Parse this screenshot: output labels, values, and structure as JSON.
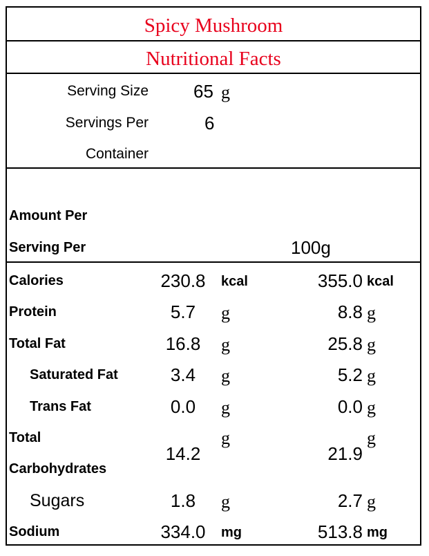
{
  "title": "Spicy Mushroom",
  "subtitle": "Nutritional Facts",
  "serving": {
    "size_label": "Serving Size",
    "size_value": "65",
    "size_unit": "g",
    "servings_label_1": "Servings Per",
    "servings_label_2": "Container",
    "servings_value": "6"
  },
  "amount_header": {
    "label_1": "Amount Per",
    "label_2": "Serving Per",
    "column_2_header": "100g"
  },
  "colors": {
    "title": "#e8001c",
    "text": "#000000",
    "border": "#000000"
  },
  "nutrients": [
    {
      "label": "Calories",
      "per_serving": "230.8",
      "per_serving_unit": "kcal",
      "per_100g": "355.0",
      "per_100g_unit": "kcal"
    },
    {
      "label": "Protein",
      "per_serving": "5.7",
      "per_serving_unit": "g",
      "per_100g": "8.8",
      "per_100g_unit": "g"
    },
    {
      "label": "Total Fat",
      "per_serving": "16.8",
      "per_serving_unit": "g",
      "per_100g": "25.8",
      "per_100g_unit": "g"
    },
    {
      "label": "Saturated Fat",
      "per_serving": "3.4",
      "per_serving_unit": "g",
      "per_100g": "5.2",
      "per_100g_unit": "g"
    },
    {
      "label": "Trans Fat",
      "per_serving": "0.0",
      "per_serving_unit": "g",
      "per_100g": "0.0",
      "per_100g_unit": "g"
    },
    {
      "label_1": "Total",
      "label_2": "Carbohydrates",
      "per_serving": "14.2",
      "per_serving_unit": "g",
      "per_100g": "21.9",
      "per_100g_unit": "g"
    },
    {
      "label": "Sugars",
      "per_serving": "1.8",
      "per_serving_unit": "g",
      "per_100g": "2.7",
      "per_100g_unit": "g"
    },
    {
      "label": "Sodium",
      "per_serving": "334.0",
      "per_serving_unit": "mg",
      "per_100g": "513.8",
      "per_100g_unit": "mg"
    }
  ]
}
